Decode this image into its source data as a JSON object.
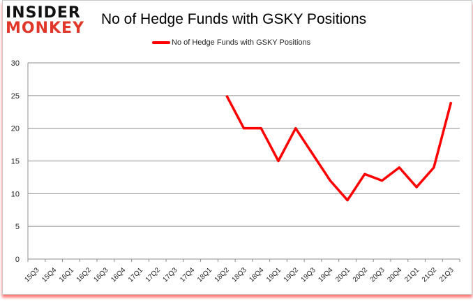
{
  "logo": {
    "line1": "INSIDER",
    "line2": "MONKEY"
  },
  "chart_data": {
    "type": "line",
    "title": "No of Hedge Funds with GSKY Positions",
    "xlabel": "",
    "ylabel": "",
    "ylim": [
      0,
      30
    ],
    "yticks": [
      0,
      5,
      10,
      15,
      20,
      25,
      30
    ],
    "grid": true,
    "legend_position": "top",
    "categories": [
      "15Q3",
      "15Q4",
      "16Q1",
      "16Q2",
      "16Q3",
      "16Q4",
      "17Q1",
      "17Q2",
      "17Q3",
      "17Q4",
      "18Q1",
      "18Q2",
      "18Q3",
      "18Q4",
      "19Q1",
      "19Q2",
      "19Q3",
      "19Q4",
      "20Q1",
      "20Q2",
      "20Q3",
      "20Q4",
      "21Q1",
      "21Q2",
      "21Q3"
    ],
    "series": [
      {
        "name": "No of Hedge Funds with GSKY Positions",
        "color": "#ff0000",
        "values": [
          null,
          null,
          null,
          null,
          null,
          null,
          null,
          null,
          null,
          null,
          null,
          25,
          20,
          20,
          15,
          20,
          16,
          12,
          9,
          13,
          12,
          14,
          11,
          14,
          24
        ]
      }
    ]
  }
}
